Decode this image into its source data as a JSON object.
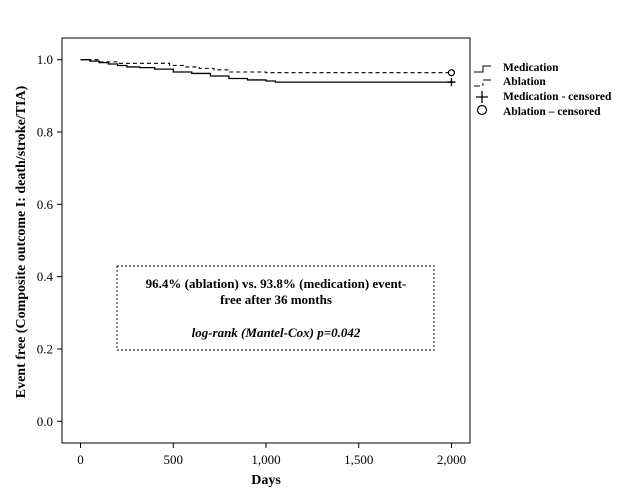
{
  "chart_data": {
    "type": "line",
    "subtype": "kaplan-meier",
    "title": "",
    "xlabel": "Days",
    "ylabel": "Event free (Composite outcome I: death/stroke/TIA)",
    "xlim": [
      -100,
      2100
    ],
    "ylim": [
      -0.06,
      1.06
    ],
    "xticks": [
      0,
      500,
      1000,
      1500,
      2000
    ],
    "xtick_labels": [
      "0",
      "500",
      "1,000",
      "1,500",
      "2,000"
    ],
    "yticks": [
      0.0,
      0.2,
      0.4,
      0.6,
      0.8,
      1.0
    ],
    "ytick_labels": [
      "0.0",
      "0.2",
      "0.4",
      "0.6",
      "0.8",
      "1.0"
    ],
    "grid": false,
    "legend_position": "right",
    "series": [
      {
        "name": "Medication",
        "line_style": "solid",
        "color": "#000000",
        "x": [
          0,
          50,
          100,
          150,
          200,
          250,
          320,
          400,
          500,
          600,
          700,
          800,
          900,
          1000,
          1050,
          1100,
          1500,
          2000
        ],
        "y": [
          1.0,
          0.996,
          0.992,
          0.988,
          0.984,
          0.98,
          0.978,
          0.974,
          0.966,
          0.962,
          0.955,
          0.948,
          0.944,
          0.941,
          0.938,
          0.938,
          0.938,
          0.938
        ]
      },
      {
        "name": "Ablation",
        "line_style": "dashed",
        "color": "#000000",
        "x": [
          0,
          100,
          200,
          400,
          480,
          560,
          640,
          720,
          800,
          1000,
          1500,
          2000
        ],
        "y": [
          1.0,
          0.994,
          0.99,
          0.99,
          0.984,
          0.98,
          0.976,
          0.972,
          0.966,
          0.964,
          0.964,
          0.964
        ]
      }
    ],
    "censored": [
      {
        "name": "Medication - censored",
        "marker": "plus",
        "x": 2000,
        "y": 0.938
      },
      {
        "name": "Ablation – censored",
        "marker": "circle",
        "x": 2000,
        "y": 0.964
      }
    ],
    "legend": [
      {
        "label": "Medication",
        "symbol": "step-solid"
      },
      {
        "label": "Ablation",
        "symbol": "step-dashed"
      },
      {
        "label": "Medication - censored",
        "symbol": "plus"
      },
      {
        "label": "Ablation – censored",
        "symbol": "circle"
      }
    ],
    "annotation": {
      "line1": "96.4% (ablation) vs. 93.8% (medication) event-",
      "line2": "free after 36 months",
      "line3": "log-rank (Mantel-Cox) p=0.042"
    }
  }
}
